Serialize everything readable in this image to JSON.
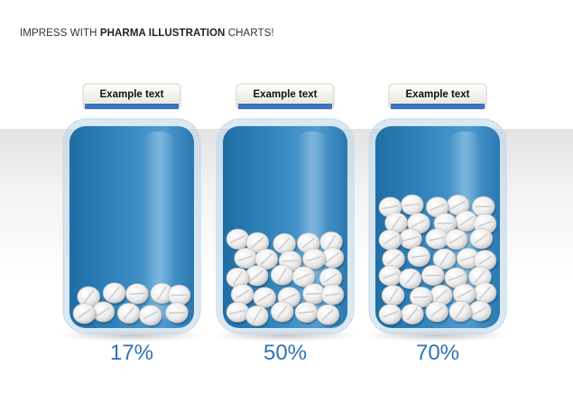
{
  "header": {
    "prefix": "IMPRESS WITH ",
    "bold": "PHARMA ILLUSTRATION",
    "suffix": " CHARTS!"
  },
  "colors": {
    "jar_blue": "#2f7fb7",
    "label_band": "#3a72c4",
    "value_text": "#2f73b3",
    "pill": "#eeeeee"
  },
  "chart_data": {
    "type": "bar",
    "categories": [
      "Example text",
      "Example text",
      "Example text"
    ],
    "values": [
      17,
      50,
      70
    ],
    "value_labels": [
      "17%",
      "50%",
      "70%"
    ],
    "ylim": [
      0,
      100
    ],
    "title": "",
    "xlabel": "",
    "ylabel": ""
  }
}
